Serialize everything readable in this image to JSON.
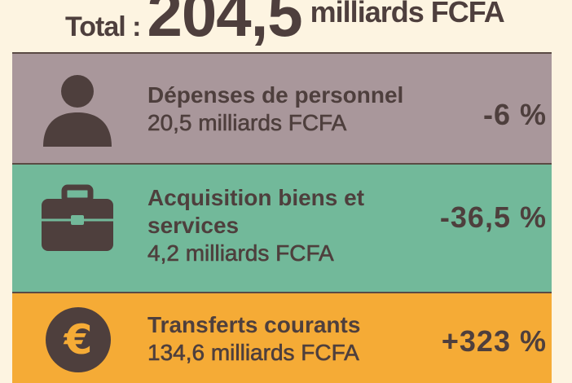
{
  "header": {
    "label": "Total :",
    "value": "204,5",
    "unit": "milliards FCFA"
  },
  "items": [
    {
      "icon": "person-icon",
      "title": "Dépenses de personnel",
      "title2": "",
      "amount": "20,5 milliards FCFA",
      "change": "-6 %",
      "color": "#a9979b"
    },
    {
      "icon": "briefcase-icon",
      "title": "Acquisition biens et",
      "title2": "services",
      "amount": "4,2 milliards FCFA",
      "change": "-36,5 %",
      "color": "#72b99a"
    },
    {
      "icon": "euro-icon",
      "title": "Transferts courants",
      "title2": "",
      "amount": "134,6 milliards FCFA",
      "change": "+323 %",
      "color": "#f5ab36"
    }
  ],
  "colors": {
    "text": "#4e3f3d",
    "background": "#fdf4e1"
  }
}
